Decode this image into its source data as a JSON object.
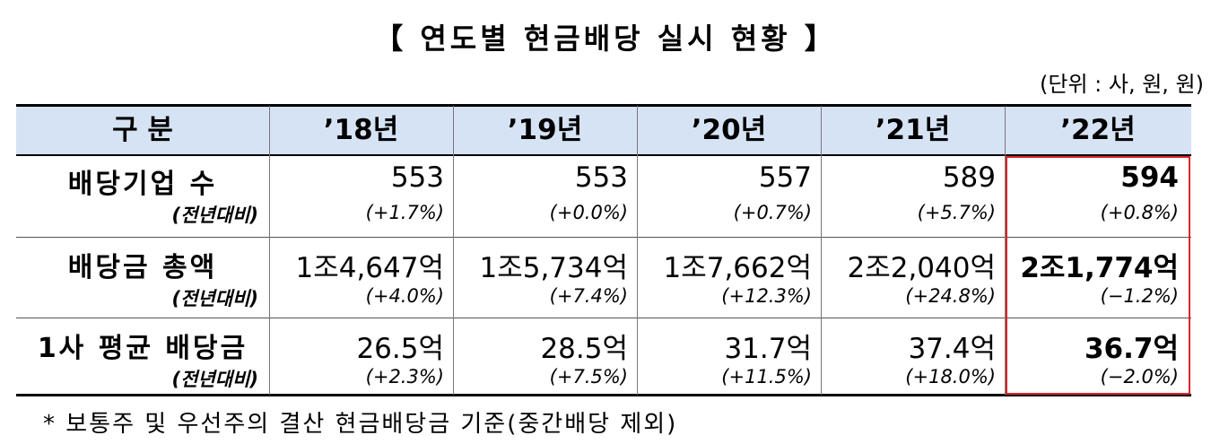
{
  "header": {
    "title": "【 연도별 현금배당 실시 현황 】",
    "unit": "(단위 : 사, 원, 원)"
  },
  "table": {
    "columns": [
      "구 분",
      "’18년",
      "’19년",
      "’20년",
      "’21년",
      "’22년"
    ],
    "rows": [
      {
        "label": "배당기업 수",
        "sublabel": "(전년대비)",
        "values": [
          "553",
          "553",
          "557",
          "589",
          "594"
        ],
        "changes": [
          "(+1.7%)",
          "(+0.0%)",
          "(+0.7%)",
          "(+5.7%)",
          "(+0.8%)"
        ]
      },
      {
        "label": "배당금 총액",
        "sublabel": "(전년대비)",
        "values": [
          "1조4,647억",
          "1조5,734억",
          "1조7,662억",
          "2조2,040억",
          "2조1,774억"
        ],
        "changes": [
          "(+4.0%)",
          "(+7.4%)",
          "(+12.3%)",
          "(+24.8%)",
          "(−1.2%)"
        ]
      },
      {
        "label": "1사 평균 배당금",
        "sublabel": "(전년대비)",
        "values": [
          "26.5억",
          "28.5억",
          "31.7억",
          "37.4억",
          "36.7억"
        ],
        "changes": [
          "(+2.3%)",
          "(+7.5%)",
          "(+11.5%)",
          "(+18.0%)",
          "(−2.0%)"
        ]
      }
    ]
  },
  "footnote": "* 보통주 및 우선주의 결산 현금배당금 기준(중간배당 제외)"
}
